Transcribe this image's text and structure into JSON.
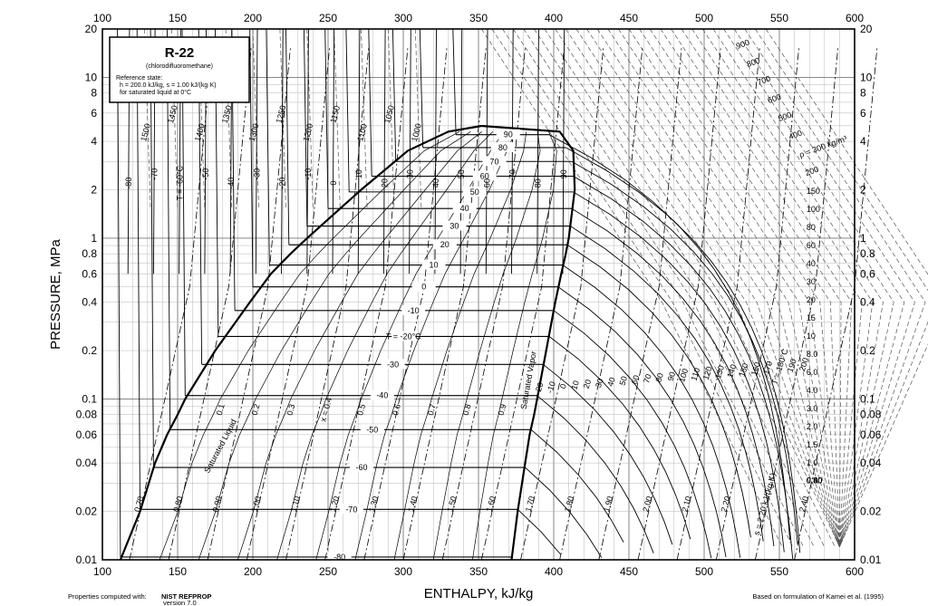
{
  "chart_data": {
    "type": "line",
    "title": "R-22",
    "subtitle": "(chlorodifluoromethane)",
    "reference_state": [
      "Reference state:",
      "h = 200.0 kJ/kg,   s = 1.00 kJ/(kg·K)",
      "for saturated liquid at 0°C"
    ],
    "xlabel": "ENTHALPY, kJ/kg",
    "ylabel": "PRESSURE, MPa",
    "xlim": [
      100,
      600
    ],
    "ylim": [
      0.01,
      20
    ],
    "y_scale": "log",
    "grid": true,
    "x_ticks": [
      "100",
      "150",
      "200",
      "250",
      "300",
      "350",
      "400",
      "450",
      "500",
      "550",
      "600"
    ],
    "y_ticks": [
      {
        "v": 0.01,
        "label": "0.01"
      },
      {
        "v": 0.02,
        "label": "0.02"
      },
      {
        "v": 0.04,
        "label": "0.04"
      },
      {
        "v": 0.06,
        "label": "0.06"
      },
      {
        "v": 0.08,
        "label": "0.08"
      },
      {
        "v": 0.1,
        "label": "0.1"
      },
      {
        "v": 0.2,
        "label": "0.2"
      },
      {
        "v": 0.4,
        "label": "0.4"
      },
      {
        "v": 0.6,
        "label": "0.6"
      },
      {
        "v": 0.8,
        "label": "0.8"
      },
      {
        "v": 1,
        "label": "1"
      },
      {
        "v": 2,
        "label": "2"
      },
      {
        "v": 4,
        "label": "4"
      },
      {
        "v": 6,
        "label": "6"
      },
      {
        "v": 8,
        "label": "8"
      },
      {
        "v": 10,
        "label": "10"
      },
      {
        "v": 20,
        "label": "20"
      }
    ],
    "saturation_dome": {
      "liquid": [
        [
          112,
          0.01
        ],
        [
          125,
          0.02
        ],
        [
          135,
          0.04
        ],
        [
          143,
          0.06
        ],
        [
          150,
          0.08
        ],
        [
          155,
          0.1
        ],
        [
          175,
          0.2
        ],
        [
          198,
          0.4
        ],
        [
          212,
          0.6
        ],
        [
          225,
          0.8
        ],
        [
          236,
          1.0
        ],
        [
          272,
          2.0
        ],
        [
          303,
          3.5
        ],
        [
          330,
          4.6
        ],
        [
          352,
          4.99
        ]
      ],
      "vapor": [
        [
          372,
          0.01
        ],
        [
          376,
          0.02
        ],
        [
          381,
          0.04
        ],
        [
          384,
          0.06
        ],
        [
          387,
          0.08
        ],
        [
          389,
          0.1
        ],
        [
          395,
          0.2
        ],
        [
          401,
          0.4
        ],
        [
          405,
          0.6
        ],
        [
          408,
          0.8
        ],
        [
          410,
          1.0
        ],
        [
          414,
          2.0
        ],
        [
          413,
          3.5
        ],
        [
          404,
          4.6
        ],
        [
          352,
          4.99
        ]
      ],
      "labels": [
        "Saturated Liquid",
        "Saturated Vapor"
      ]
    },
    "isotherms_two_phase": [
      {
        "label": "-80",
        "p": 0.0104,
        "h1": 112,
        "h2": 372
      },
      {
        "label": "-70",
        "p": 0.0206,
        "h1": 125,
        "h2": 376
      },
      {
        "label": "-60",
        "p": 0.0375,
        "h1": 134,
        "h2": 381
      },
      {
        "label": "-50",
        "p": 0.0645,
        "h1": 145,
        "h2": 385
      },
      {
        "label": "-40",
        "p": 0.105,
        "h1": 155,
        "h2": 389
      },
      {
        "label": "-30",
        "p": 0.164,
        "h1": 166,
        "h2": 393
      },
      {
        "label": "T = -20°C",
        "p": 0.245,
        "h1": 177,
        "h2": 397
      },
      {
        "label": "-10",
        "p": 0.355,
        "h1": 188,
        "h2": 400
      },
      {
        "label": "0",
        "p": 0.498,
        "h1": 200,
        "h2": 403
      },
      {
        "label": "10",
        "p": 0.681,
        "h1": 211,
        "h2": 406
      },
      {
        "label": "20",
        "p": 0.91,
        "h1": 224,
        "h2": 409
      },
      {
        "label": "30",
        "p": 1.19,
        "h1": 236,
        "h2": 411
      },
      {
        "label": "40",
        "p": 1.53,
        "h1": 250,
        "h2": 412
      },
      {
        "label": "50",
        "p": 1.94,
        "h1": 264,
        "h2": 413
      },
      {
        "label": "60",
        "p": 2.43,
        "h1": 279,
        "h2": 413
      },
      {
        "label": "70",
        "p": 3.0,
        "h1": 295,
        "h2": 412
      },
      {
        "label": "80",
        "p": 3.66,
        "h1": 313,
        "h2": 408
      },
      {
        "label": "90",
        "p": 4.4,
        "h1": 335,
        "h2": 397
      }
    ],
    "quality_labels": [
      "0.1",
      "0.2",
      "0.3",
      "x = 0.4",
      "0.5",
      "0.6",
      "0.7",
      "0.8",
      "0.9"
    ],
    "liquid_isotherm_labels": [
      "-80",
      "-70",
      "T = -60°C",
      "-50",
      "-40",
      "-30",
      "-20",
      "-10",
      "0",
      "10",
      "20",
      "30",
      "40",
      "50",
      "60",
      "70",
      "80",
      "90"
    ],
    "vapor_isotherm_labels": [
      "-20",
      "-10",
      "0",
      "10",
      "20",
      "30",
      "40",
      "50",
      "60",
      "70",
      "80",
      "90",
      "100",
      "110",
      "120",
      "130",
      "140",
      "150",
      "160",
      "170",
      "T = 180°C",
      "190",
      "200"
    ],
    "density_labels": [
      "1500",
      "1450",
      "1400",
      "1350",
      "1300",
      "1250",
      "1200",
      "1150",
      "1100",
      "1050",
      "1000",
      "900",
      "800",
      "700",
      "600",
      "500",
      "400",
      "ρ = 300 kg/m³",
      "200",
      "150",
      "100",
      "80",
      "60",
      "40",
      "30",
      "20",
      "15",
      "10",
      "8.0",
      "6.0",
      "4.0",
      "3.0",
      "2.0",
      "1.5",
      "1.0",
      "0.80",
      "0.60",
      "0.40",
      "0.30"
    ],
    "entropy_labels": [
      "0.70",
      "0.80",
      "0.90",
      "1.00",
      "1.10",
      "1.20",
      "1.30",
      "1.40",
      "1.50",
      "1.60",
      "1.70",
      "1.80",
      "1.90",
      "2.00",
      "2.10",
      "2.20",
      "s = 2.20 kJ/(kg·K)",
      "2.40"
    ]
  },
  "footer": {
    "left_prefix": "Properties computed with:",
    "left_name": "NIST REFPROP",
    "left_version": "version 7.0",
    "right": "Based on formulation of Kamei et al. (1995)"
  }
}
